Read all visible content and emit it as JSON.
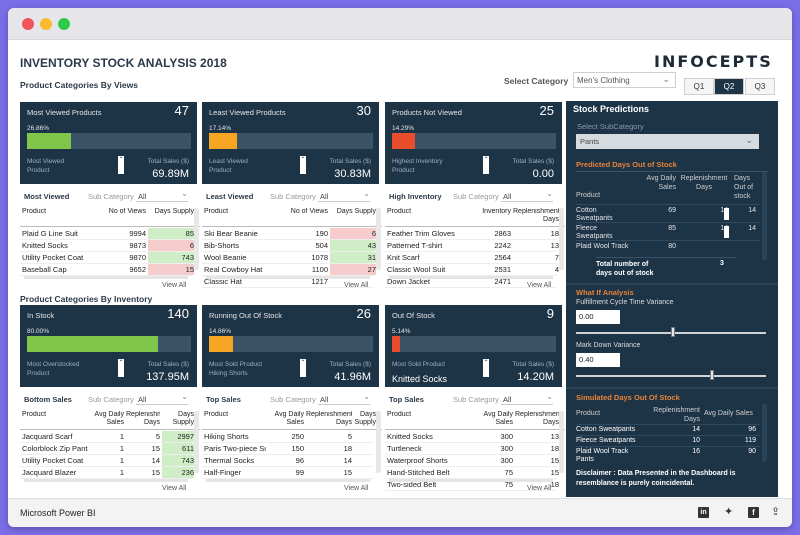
{
  "report": {
    "title": "INVENTORY STOCK ANALYSIS 2018",
    "logo_text": "INFOCEPTS",
    "section_views": "Product Categories By Views",
    "section_inventory": "Product Categories By Inventory",
    "select_category_label": "Select Category",
    "select_category_value": "Men's Clothing",
    "quarters": [
      "Q1",
      "Q2",
      "Q3"
    ],
    "active_quarter": "Q2",
    "view_all": "View All"
  },
  "cards_views": [
    {
      "title": "Most Viewed Products",
      "count": "47",
      "pct": "26.86%",
      "pct_value": 26.86,
      "bar_color": "#7fc64b",
      "sub1": "Most Viewed",
      "sub2": "Product",
      "sales_label": "Total Sales ($)",
      "sales": "69.89M"
    },
    {
      "title": "Least Viewed Products",
      "count": "30",
      "pct": "17.14%",
      "pct_value": 17.14,
      "bar_color": "#f6a623",
      "sub1": "Least Viewed",
      "sub2": "Product",
      "sales_label": "Total Sales ($)",
      "sales": "30.83M"
    },
    {
      "title": "Products Not Viewed",
      "count": "25",
      "pct": "14.29%",
      "pct_value": 14.29,
      "bar_color": "#e84e2b",
      "sub1": "Highest Inventory",
      "sub2": "Product",
      "sales_label": "Total Sales ($)",
      "sales": "0.00"
    }
  ],
  "cards_inventory": [
    {
      "title": "In Stock",
      "count": "140",
      "pct": "80.00%",
      "pct_value": 80.0,
      "bar_color": "#7fc64b",
      "sub1": "Most Overstocked",
      "sub2": "Product",
      "sales_label": "Total Sales ($)",
      "sales": "137.95M",
      "sub_big": ""
    },
    {
      "title": "Running Out Of Stock",
      "count": "26",
      "pct": "14.86%",
      "pct_value": 14.86,
      "bar_color": "#f6a623",
      "sub1": "Most Sold Product",
      "sub2": "Hiking Shorts",
      "sales_label": "Total Sales ($)",
      "sales": "41.96M",
      "sub_big": ""
    },
    {
      "title": "Out Of Stock",
      "count": "9",
      "pct": "5.14%",
      "pct_value": 5.14,
      "bar_color": "#e84e2b",
      "sub1": "Most Sold Product",
      "sub2": "",
      "sales_label": "Total Sales ($)",
      "sales": "14.20M",
      "sub_big": "Knitted Socks"
    }
  ],
  "table_most_viewed": {
    "title": "Most Viewed",
    "subcat_label": "Sub Category",
    "subcat_value": "All",
    "headers": [
      "Product",
      "No of Views",
      "Days Supply"
    ],
    "rows": [
      [
        "Plaid G Line Suit",
        "9994",
        "85"
      ],
      [
        "Knitted Socks",
        "9873",
        "6"
      ],
      [
        "Utility Pocket Coat",
        "9870",
        "743"
      ],
      [
        "Baseball Cap",
        "9652",
        "15"
      ]
    ]
  },
  "table_least_viewed": {
    "title": "Least Viewed",
    "subcat_label": "Sub Category",
    "subcat_value": "All",
    "headers": [
      "Product",
      "No of Views",
      "Days Supply"
    ],
    "rows": [
      [
        "Ski Bear Beanie",
        "190",
        "6"
      ],
      [
        "Bib-Shorts",
        "504",
        "43"
      ],
      [
        "Wool Beanie",
        "1078",
        "31"
      ],
      [
        "Real Cowboy Hat",
        "1100",
        "27"
      ],
      [
        "Classic Hat",
        "1217",
        ""
      ]
    ]
  },
  "table_high_inventory": {
    "title": "High Inventory",
    "subcat_label": "Sub Category",
    "subcat_value": "All",
    "headers": [
      "Product",
      "Inventory",
      "Replenishment Days"
    ],
    "rows": [
      [
        "Feather Trim Gloves",
        "2863",
        "18"
      ],
      [
        "Patterned T-shirt",
        "2242",
        "13"
      ],
      [
        "Knit Scarf",
        "2564",
        "7"
      ],
      [
        "Classic Wool Suit",
        "2531",
        "4"
      ],
      [
        "Down Jacket",
        "2471",
        ""
      ]
    ]
  },
  "table_bottom_sales": {
    "title": "Bottom Sales",
    "subcat_label": "Sub Category",
    "subcat_value": "All",
    "headers": [
      "Product",
      "Avg Daily Sales",
      "Replenishment Days",
      "Days Supply"
    ],
    "rows": [
      [
        "Jacquard Scarf",
        "1",
        "5",
        "2997"
      ],
      [
        "Colorblock Zip Pants",
        "1",
        "15",
        "611"
      ],
      [
        "Utility Pocket Coat",
        "1",
        "14",
        "743"
      ],
      [
        "Jacquard Blazer",
        "1",
        "15",
        "236"
      ]
    ]
  },
  "table_top_sales": {
    "title": "Top Sales",
    "subcat_label": "Sub Category",
    "subcat_value": "All",
    "headers": [
      "Product",
      "Avg Daily Sales",
      "Replenishment Days",
      "Days Supply"
    ],
    "rows": [
      [
        "Hiking Shorts",
        "250",
        "5",
        ""
      ],
      [
        "Paris Two-piece Suit",
        "150",
        "18",
        ""
      ],
      [
        "Thermal Socks",
        "96",
        "14",
        ""
      ],
      [
        "Half-Finger",
        "99",
        "15",
        ""
      ]
    ]
  },
  "table_top_sales_right": {
    "title": "Top Sales",
    "subcat_label": "Sub Category",
    "subcat_value": "All",
    "headers": [
      "Product",
      "Avg Daily Sales",
      "Replenishment Days"
    ],
    "rows": [
      [
        "Knitted Socks",
        "300",
        "13"
      ],
      [
        "Turtleneck",
        "300",
        "18"
      ],
      [
        "Waterproof Shorts",
        "300",
        "15"
      ],
      [
        "Hand-Stitched Belt",
        "75",
        "15"
      ],
      [
        "Two-sided Belt",
        "75",
        "18"
      ]
    ]
  },
  "predictions": {
    "title": "Stock Predictions",
    "select_sub_label": "Select SubCategory",
    "select_sub_value": "Pants",
    "predicted_title": "Predicted Days Out of Stock",
    "headers": [
      "Product",
      "Avg Daily Sales",
      "Replenishment Days",
      "Days Out of stock"
    ],
    "rows": [
      [
        "Cotton Sweatpants",
        "69",
        "14",
        "14"
      ],
      [
        "Fleece Sweatpants",
        "85",
        "14",
        "14"
      ],
      [
        "Plaid Wool Track",
        "80",
        "",
        ""
      ]
    ],
    "total_label": "Total number of days out of stock",
    "total_value": "3",
    "whatif_title": "What If Analysis",
    "fulfillment_label": "Fulfillment Cycle Time Variance",
    "fulfillment_value": "0.00",
    "markdown_label": "Mark Down Variance",
    "markdown_value": "0.40",
    "simulated_title": "Simulated Days Out Of Stock",
    "sim_headers": [
      "Product",
      "Replenishment Days",
      "Avg Daily Sales"
    ],
    "sim_rows": [
      [
        "Cotton Sweatpants",
        "14",
        "96"
      ],
      [
        "Fleece Sweatpants",
        "10",
        "119"
      ],
      [
        "Plaid Wool Track Pants",
        "16",
        "90"
      ]
    ],
    "disclaimer": "Disclaimer : Data Presented in the Dashboard is resemblance is purely coincidental."
  },
  "footer": {
    "app_name": "Microsoft Power BI"
  }
}
